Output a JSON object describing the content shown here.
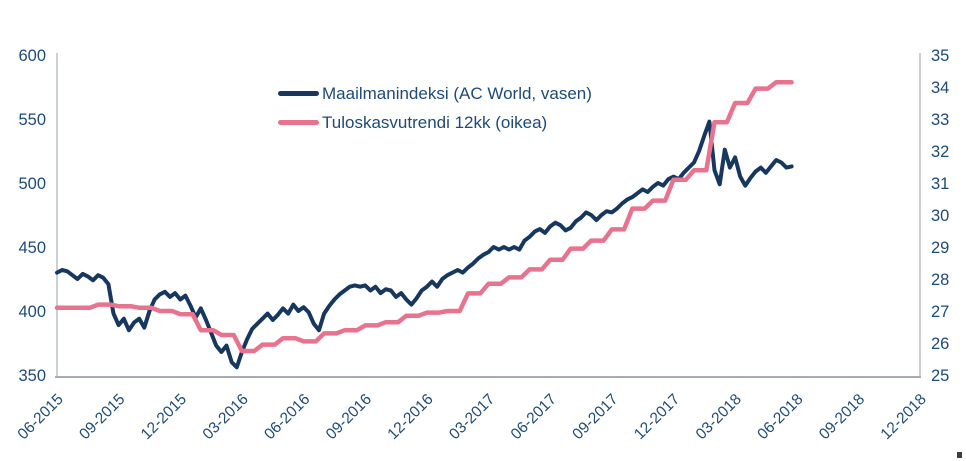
{
  "chart_data": {
    "type": "line",
    "title": "",
    "grid": false,
    "legend": {
      "position": "inside-top-center",
      "orientation": "vertical"
    },
    "x_axis": {
      "tick_labels": [
        "06-2015",
        "09-2015",
        "12-2015",
        "03-2016",
        "06-2016",
        "09-2016",
        "12-2016",
        "03-2017",
        "06-2017",
        "09-2017",
        "12-2017",
        "03-2018",
        "06-2018",
        "09-2018",
        "12-2018"
      ],
      "tick_positions_months": [
        0,
        3,
        6,
        9,
        12,
        15,
        18,
        21,
        24,
        27,
        30,
        33,
        36,
        39,
        42
      ],
      "range_months": [
        0,
        42
      ],
      "label_rotation_deg": -45
    },
    "left_axis": {
      "min": 350,
      "max": 600,
      "ticks": [
        600,
        550,
        500,
        450,
        400,
        350
      ]
    },
    "right_axis": {
      "min": 25,
      "max": 35,
      "ticks": [
        35,
        34,
        33,
        32,
        31,
        30,
        29,
        28,
        27,
        26,
        25
      ]
    },
    "series": [
      {
        "name": "Maailmanindeksi (AC World, vasen)",
        "axis": "left",
        "color": "#17375E",
        "width": 4,
        "x_start": 0,
        "x_step": 0.25,
        "values": [
          430,
          432,
          431,
          428,
          425,
          429,
          427,
          424,
          428,
          426,
          421,
          398,
          389,
          394,
          385,
          391,
          394,
          387,
          400,
          409,
          413,
          415,
          411,
          414,
          409,
          412,
          404,
          395,
          402,
          393,
          383,
          373,
          368,
          373,
          360,
          356,
          368,
          378,
          386,
          390,
          394,
          398,
          393,
          397,
          402,
          398,
          405,
          400,
          403,
          399,
          390,
          385,
          398,
          404,
          409,
          413,
          416,
          419,
          420,
          419,
          420,
          416,
          419,
          414,
          417,
          416,
          411,
          414,
          409,
          405,
          410,
          416,
          419,
          423,
          419,
          425,
          428,
          430,
          432,
          430,
          434,
          437,
          441,
          444,
          446,
          450,
          448,
          450,
          448,
          450,
          448,
          455,
          458,
          462,
          464,
          461,
          466,
          469,
          467,
          463,
          465,
          470,
          473,
          477,
          475,
          471,
          475,
          478,
          477,
          480,
          484,
          487,
          489,
          492,
          495,
          493,
          497,
          500,
          498,
          503,
          505,
          503,
          508,
          512,
          516,
          525,
          537,
          548,
          510,
          499,
          526,
          512,
          520,
          505,
          498,
          504,
          509,
          512,
          508,
          513,
          518,
          516,
          512,
          513
        ]
      },
      {
        "name": "Tuloskasvutrendi 12kk (oikea)",
        "axis": "right",
        "color": "#E8738E",
        "width": 4.5,
        "step_hold": 0.6,
        "points": [
          [
            0,
            27.1
          ],
          [
            1,
            27.1
          ],
          [
            2,
            27.2
          ],
          [
            3,
            27.15
          ],
          [
            4,
            27.1
          ],
          [
            5,
            27.0
          ],
          [
            6,
            26.9
          ],
          [
            7,
            26.4
          ],
          [
            8,
            26.25
          ],
          [
            9,
            25.75
          ],
          [
            10,
            25.95
          ],
          [
            11,
            26.15
          ],
          [
            12,
            26.05
          ],
          [
            13,
            26.3
          ],
          [
            14,
            26.4
          ],
          [
            15,
            26.55
          ],
          [
            16,
            26.65
          ],
          [
            17,
            26.85
          ],
          [
            18,
            26.95
          ],
          [
            19,
            27.0
          ],
          [
            20,
            27.55
          ],
          [
            21,
            27.85
          ],
          [
            22,
            28.05
          ],
          [
            23,
            28.3
          ],
          [
            24,
            28.6
          ],
          [
            25,
            28.95
          ],
          [
            26,
            29.2
          ],
          [
            27,
            29.55
          ],
          [
            28,
            30.2
          ],
          [
            29,
            30.45
          ],
          [
            30,
            31.1
          ],
          [
            31,
            31.4
          ],
          [
            32,
            32.9
          ],
          [
            33,
            33.5
          ],
          [
            34,
            33.95
          ],
          [
            35,
            34.15
          ],
          [
            35.75,
            34.15
          ]
        ]
      }
    ]
  },
  "colors": {
    "navy_line": "#17375E",
    "pink_line": "#E8738E",
    "tick_text": "#1E4A74",
    "axis_line": "#C0C3C9",
    "bottom_axis_line": "#A9ADB3",
    "background": "#FFFFFF"
  }
}
